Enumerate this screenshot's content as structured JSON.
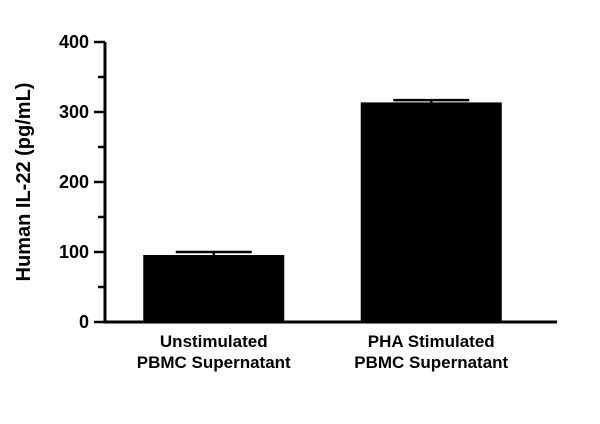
{
  "figure": {
    "background_color": "#ffffff"
  },
  "chart_data": {
    "type": "bar",
    "title": "",
    "xlabel": "",
    "ylabel": "Human IL-22 (pg/mL)",
    "ylim": [
      0,
      400
    ],
    "yticks": [
      0,
      100,
      200,
      300,
      400
    ],
    "minor_tick_step": 50,
    "categories": [
      [
        "Unstimulated",
        "PBMC Supernatant"
      ],
      [
        "PHA Stimulated",
        "PBMC Supernatant"
      ]
    ],
    "values": [
      95,
      313
    ],
    "errors": [
      5,
      4
    ],
    "bar_color": "#000000",
    "axis_color": "#000000",
    "grid": false,
    "legend": false
  }
}
